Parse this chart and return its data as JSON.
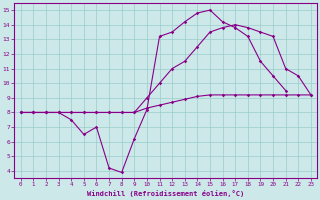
{
  "background_color": "#cce8e8",
  "grid_color": "#99cccc",
  "line_color": "#880088",
  "xlabel": "Windchill (Refroidissement éolien,°C)",
  "xlim": [
    -0.5,
    23.5
  ],
  "ylim": [
    3.5,
    15.5
  ],
  "xticks": [
    0,
    1,
    2,
    3,
    4,
    5,
    6,
    7,
    8,
    9,
    10,
    11,
    12,
    13,
    14,
    15,
    16,
    17,
    18,
    19,
    20,
    21,
    22,
    23
  ],
  "yticks": [
    4,
    5,
    6,
    7,
    8,
    9,
    10,
    11,
    12,
    13,
    14,
    15
  ],
  "line1_x": [
    0,
    1,
    2,
    3,
    4,
    5,
    6,
    7,
    8,
    9,
    10,
    11,
    12,
    13,
    14,
    15,
    16,
    17,
    18,
    19,
    20,
    21
  ],
  "line1_y": [
    8,
    8,
    8,
    8,
    7.5,
    6.5,
    7,
    4.2,
    3.9,
    6.2,
    8.2,
    13.2,
    13.5,
    14.2,
    14.8,
    15,
    14.2,
    13.8,
    13.2,
    11.5,
    10.5,
    9.5
  ],
  "line2_x": [
    0,
    1,
    2,
    3,
    4,
    5,
    6,
    7,
    8,
    9,
    10,
    11,
    12,
    13,
    14,
    15,
    16,
    17,
    18,
    19,
    20,
    21,
    22,
    23
  ],
  "line2_y": [
    8,
    8,
    8,
    8,
    8,
    8,
    8,
    8,
    8,
    8,
    9,
    10,
    11,
    11.5,
    12.5,
    13.5,
    13.8,
    14,
    13.8,
    13.5,
    13.2,
    11,
    10.5,
    9.2
  ],
  "line3_x": [
    0,
    1,
    2,
    3,
    4,
    5,
    6,
    7,
    8,
    9,
    10,
    11,
    12,
    13,
    14,
    15,
    16,
    17,
    18,
    19,
    20,
    21,
    22,
    23
  ],
  "line3_y": [
    8,
    8,
    8,
    8,
    8,
    8,
    8,
    8,
    8,
    8,
    8.3,
    8.5,
    8.7,
    8.9,
    9.1,
    9.2,
    9.2,
    9.2,
    9.2,
    9.2,
    9.2,
    9.2,
    9.2,
    9.2
  ]
}
